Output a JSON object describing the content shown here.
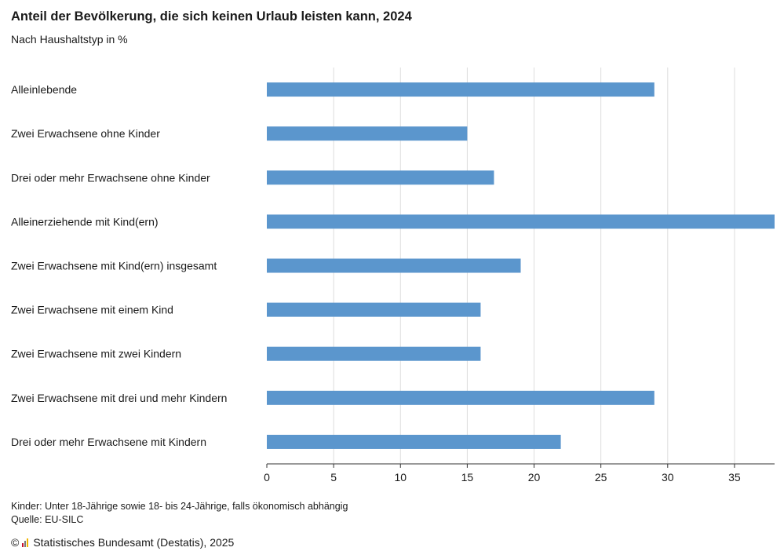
{
  "title": "Anteil der Bevölkerung, die sich keinen Urlaub leisten kann, 2024",
  "subtitle": "Nach Haushaltstyp in %",
  "footnotes": [
    "Kinder: Unter 18-Jährige sowie 18- bis 24-Jährige, falls ökonomisch abhängig",
    "Quelle: EU-SILC"
  ],
  "copyright_symbol": "©",
  "copyright_text": "Statistisches Bundesamt (Destatis), 2025",
  "colors": {
    "bar": "#5b96cd",
    "grid": "#dddddd",
    "axis": "#333333"
  },
  "chart_data": {
    "type": "bar",
    "orientation": "horizontal",
    "categories": [
      "Alleinlebende",
      "Zwei Erwachsene ohne Kinder",
      "Drei oder mehr Erwachsene ohne Kinder",
      "Alleinerziehende mit Kind(ern)",
      "Zwei Erwachsene mit Kind(ern) insgesamt",
      "Zwei Erwachsene mit einem Kind",
      "Zwei Erwachsene mit zwei Kindern",
      "Zwei Erwachsene mit drei und mehr Kindern",
      "Drei oder mehr Erwachsene mit Kindern"
    ],
    "values": [
      29,
      15,
      17,
      38,
      19,
      16,
      16,
      29,
      22
    ],
    "xlim": [
      0,
      38
    ],
    "xticks": [
      0,
      5,
      10,
      15,
      20,
      25,
      30,
      35
    ],
    "grid": true
  }
}
